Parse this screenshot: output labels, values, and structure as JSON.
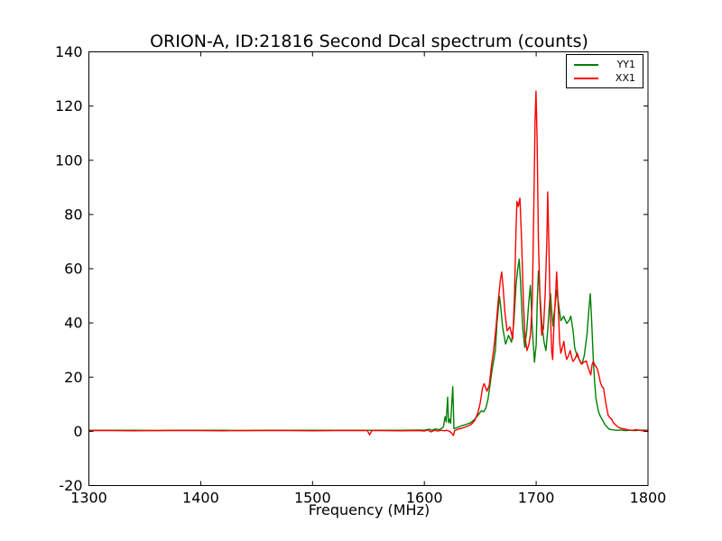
{
  "chart_data": {
    "type": "line",
    "title": "ORION-A, ID:21816 Second Dcal spectrum (counts)",
    "xlabel": "Frequency (MHz)",
    "ylabel": "",
    "xlim": [
      1300,
      1800
    ],
    "ylim": [
      -20,
      140
    ],
    "xticks": [
      1300,
      1400,
      1500,
      1600,
      1700,
      1800
    ],
    "yticks": [
      -20,
      0,
      20,
      40,
      60,
      80,
      100,
      120,
      140
    ],
    "grid": false,
    "legend_position": "upper right",
    "background_color": "#ffffff",
    "axes_color": "#000000",
    "series": [
      {
        "name": "YY1",
        "color": "#008000",
        "points": [
          [
            1300,
            0.4
          ],
          [
            1320,
            0.4
          ],
          [
            1340,
            0.4
          ],
          [
            1360,
            0.3
          ],
          [
            1380,
            0.4
          ],
          [
            1400,
            0.4
          ],
          [
            1420,
            0.4
          ],
          [
            1440,
            0.3
          ],
          [
            1460,
            0.4
          ],
          [
            1480,
            0.4
          ],
          [
            1500,
            0.4
          ],
          [
            1520,
            0.4
          ],
          [
            1540,
            0.4
          ],
          [
            1560,
            0.4
          ],
          [
            1580,
            0.4
          ],
          [
            1596,
            0.5
          ],
          [
            1600,
            0.4
          ],
          [
            1604,
            0.8
          ],
          [
            1607,
            0.4
          ],
          [
            1610,
            0.9
          ],
          [
            1613,
            0.6
          ],
          [
            1615,
            1.0
          ],
          [
            1617,
            1.6
          ],
          [
            1618.6,
            5.4
          ],
          [
            1619.5,
            3.5
          ],
          [
            1620.8,
            12.6
          ],
          [
            1621.6,
            3.2
          ],
          [
            1622.5,
            4.5
          ],
          [
            1623.5,
            3.0
          ],
          [
            1625.4,
            16.5
          ],
          [
            1626.5,
            1.0
          ],
          [
            1628,
            1.2
          ],
          [
            1630,
            1.5
          ],
          [
            1633.5,
            2.1
          ],
          [
            1637,
            2.5
          ],
          [
            1641.5,
            3.2
          ],
          [
            1644.5,
            4.2
          ],
          [
            1647,
            5.4
          ],
          [
            1649,
            6.5
          ],
          [
            1651,
            7.6
          ],
          [
            1653,
            7.2
          ],
          [
            1655,
            8.5
          ],
          [
            1657,
            12
          ],
          [
            1659,
            18
          ],
          [
            1660.5,
            22.6
          ],
          [
            1662,
            26
          ],
          [
            1663.5,
            30
          ],
          [
            1665,
            40
          ],
          [
            1666.5,
            47
          ],
          [
            1667.2,
            49.8
          ],
          [
            1668.5,
            45
          ],
          [
            1670,
            38.5
          ],
          [
            1672.6,
            32.2
          ],
          [
            1675.3,
            35.4
          ],
          [
            1678,
            32.9
          ],
          [
            1680,
            40
          ],
          [
            1682,
            54
          ],
          [
            1683.5,
            60
          ],
          [
            1684.8,
            63.5
          ],
          [
            1686,
            55
          ],
          [
            1688,
            38
          ],
          [
            1689.8,
            31
          ],
          [
            1691.5,
            37
          ],
          [
            1693.5,
            48
          ],
          [
            1694.8,
            53.8
          ],
          [
            1696.5,
            38
          ],
          [
            1698.5,
            25.5
          ],
          [
            1700,
            32
          ],
          [
            1701,
            48
          ],
          [
            1702,
            59.2
          ],
          [
            1703.5,
            50
          ],
          [
            1705,
            40
          ],
          [
            1707,
            33
          ],
          [
            1708.7,
            29.8
          ],
          [
            1710.5,
            38
          ],
          [
            1712,
            48
          ],
          [
            1712.8,
            50.8
          ],
          [
            1714,
            44
          ],
          [
            1715,
            38.8
          ],
          [
            1716.5,
            45
          ],
          [
            1718.5,
            52.2
          ],
          [
            1720,
            47
          ],
          [
            1722,
            40.8
          ],
          [
            1724.6,
            42.5
          ],
          [
            1726,
            41
          ],
          [
            1727.4,
            39.8
          ],
          [
            1729.5,
            41
          ],
          [
            1731,
            42.5
          ],
          [
            1733,
            37
          ],
          [
            1734.5,
            30.8
          ],
          [
            1736.5,
            28
          ],
          [
            1738.6,
            26.5
          ],
          [
            1741,
            24.8
          ],
          [
            1743,
            28
          ],
          [
            1745.5,
            36
          ],
          [
            1747.5,
            47
          ],
          [
            1748.4,
            50.8
          ],
          [
            1749.5,
            42
          ],
          [
            1751,
            27.2
          ],
          [
            1752.3,
            18
          ],
          [
            1753.4,
            12.2
          ],
          [
            1755.8,
            7.2
          ],
          [
            1757.5,
            5.5
          ],
          [
            1759.8,
            3.8
          ],
          [
            1762,
            2.2
          ],
          [
            1765.3,
            0.8
          ],
          [
            1768,
            0.6
          ],
          [
            1772,
            0.4
          ],
          [
            1776,
            0.5
          ],
          [
            1780,
            0.3
          ],
          [
            1784,
            0.4
          ],
          [
            1788,
            0.3
          ],
          [
            1792,
            0.4
          ],
          [
            1796,
            0.5
          ],
          [
            1800,
            0.3
          ]
        ]
      },
      {
        "name": "XX1",
        "color": "#ff0000",
        "points": [
          [
            1300,
            0.3
          ],
          [
            1320,
            0.3
          ],
          [
            1340,
            0.2
          ],
          [
            1360,
            0.3
          ],
          [
            1380,
            0.3
          ],
          [
            1400,
            0.3
          ],
          [
            1420,
            0.2
          ],
          [
            1440,
            0.3
          ],
          [
            1460,
            0.3
          ],
          [
            1480,
            0.3
          ],
          [
            1500,
            0.2
          ],
          [
            1520,
            0.3
          ],
          [
            1540,
            0.3
          ],
          [
            1549,
            0.3
          ],
          [
            1551,
            -1.3
          ],
          [
            1553,
            0.3
          ],
          [
            1560,
            0.3
          ],
          [
            1580,
            0.2
          ],
          [
            1595,
            0.3
          ],
          [
            1600,
            0.1
          ],
          [
            1603,
            0.5
          ],
          [
            1606,
            -0.2
          ],
          [
            1609,
            0.4
          ],
          [
            1612,
            0.1
          ],
          [
            1615,
            0.4
          ],
          [
            1618,
            0.2
          ],
          [
            1620,
            0.4
          ],
          [
            1622,
            0.1
          ],
          [
            1624,
            -0.4
          ],
          [
            1626,
            -1.5
          ],
          [
            1627,
            0.2
          ],
          [
            1630,
            0.8
          ],
          [
            1634,
            1.2
          ],
          [
            1638,
            1.8
          ],
          [
            1642,
            2.6
          ],
          [
            1645,
            4
          ],
          [
            1648,
            7
          ],
          [
            1650,
            10.5
          ],
          [
            1652,
            16
          ],
          [
            1653.5,
            17.6
          ],
          [
            1656,
            14.8
          ],
          [
            1658,
            17
          ],
          [
            1660,
            24
          ],
          [
            1662,
            30
          ],
          [
            1664,
            38
          ],
          [
            1666,
            48
          ],
          [
            1668,
            56
          ],
          [
            1669.2,
            58.8
          ],
          [
            1670.5,
            53
          ],
          [
            1672,
            44
          ],
          [
            1674,
            37.1
          ],
          [
            1676.5,
            38.5
          ],
          [
            1679,
            34.1
          ],
          [
            1680.5,
            48
          ],
          [
            1682,
            75
          ],
          [
            1682.8,
            84.8
          ],
          [
            1684,
            83
          ],
          [
            1685.5,
            86
          ],
          [
            1687,
            70
          ],
          [
            1688.5,
            48
          ],
          [
            1690,
            35
          ],
          [
            1691.8,
            29.8
          ],
          [
            1693.5,
            32
          ],
          [
            1695,
            36
          ],
          [
            1696.5,
            48
          ],
          [
            1698,
            85
          ],
          [
            1699,
            115
          ],
          [
            1699.8,
            125.5
          ],
          [
            1700.8,
            108
          ],
          [
            1702,
            70
          ],
          [
            1703.5,
            48
          ],
          [
            1705,
            35.5
          ],
          [
            1706.5,
            38
          ],
          [
            1708,
            50
          ],
          [
            1709.5,
            70
          ],
          [
            1710.3,
            88.3
          ],
          [
            1711.3,
            70
          ],
          [
            1712.5,
            45
          ],
          [
            1714,
            29
          ],
          [
            1714.8,
            26.5
          ],
          [
            1716,
            40
          ],
          [
            1717.5,
            52
          ],
          [
            1718.3,
            58.8
          ],
          [
            1719.5,
            48
          ],
          [
            1721,
            33
          ],
          [
            1722,
            28.8
          ],
          [
            1723.5,
            31
          ],
          [
            1724.8,
            33.2
          ],
          [
            1726,
            29
          ],
          [
            1727.3,
            26.5
          ],
          [
            1729,
            28
          ],
          [
            1730.4,
            29.8
          ],
          [
            1732,
            27
          ],
          [
            1733,
            25.8
          ],
          [
            1735,
            27
          ],
          [
            1736.8,
            28.8
          ],
          [
            1738.5,
            26.5
          ],
          [
            1740.4,
            24.8
          ],
          [
            1742.5,
            25.5
          ],
          [
            1744.8,
            26
          ],
          [
            1746.5,
            23.5
          ],
          [
            1748.8,
            20.8
          ],
          [
            1750,
            24.5
          ],
          [
            1751,
            25.8
          ],
          [
            1752.5,
            24.5
          ],
          [
            1754.6,
            23.2
          ],
          [
            1756,
            20.8
          ],
          [
            1757.5,
            18
          ],
          [
            1758.8,
            16.5
          ],
          [
            1760.2,
            16
          ],
          [
            1761.5,
            12.5
          ],
          [
            1762.8,
            9.2
          ],
          [
            1764.3,
            6
          ],
          [
            1766,
            5
          ],
          [
            1767.5,
            4.5
          ],
          [
            1769,
            3.2
          ],
          [
            1771.5,
            2.2
          ],
          [
            1774,
            1.4
          ],
          [
            1777,
            1
          ],
          [
            1780,
            0.8
          ],
          [
            1783,
            0.5
          ],
          [
            1786,
            0.4
          ],
          [
            1789,
            0.6
          ],
          [
            1792,
            0.5
          ],
          [
            1795,
            0.2
          ],
          [
            1797,
            0.4
          ],
          [
            1799,
            0.3
          ],
          [
            1800,
            0.5
          ]
        ]
      }
    ]
  }
}
